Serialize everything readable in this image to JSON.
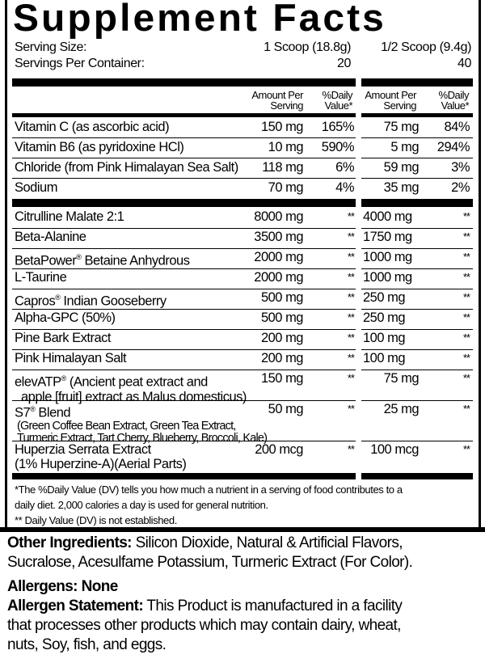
{
  "title": "Supplement Facts",
  "serving": {
    "size_label": "Serving Size:",
    "size_full": "1 Scoop (18.8g)",
    "size_half": "1/2 Scoop (9.4g)",
    "servings_label": "Servings Per Container:",
    "servings_full": "20",
    "servings_half": "40"
  },
  "header": {
    "amount_line1": "Amount Per",
    "amount_line2": "Serving",
    "dv_line1": "%Daily",
    "dv_line2": "Value*"
  },
  "nutrients": [
    {
      "name": "Vitamin C (as ascorbic acid)",
      "amount": "150 mg",
      "dv": "165%",
      "half_amount": "75 mg",
      "half_dv": "84%"
    },
    {
      "name": "Vitamin B6 (as pyridoxine HCl)",
      "amount": "10 mg",
      "dv": "590%",
      "half_amount": "5 mg",
      "half_dv": "294%"
    },
    {
      "name": "Chloride (from Pink Himalayan Sea Salt)",
      "amount": "118 mg",
      "dv": "6%",
      "half_amount": "59 mg",
      "half_dv": "3%"
    },
    {
      "name": "Sodium",
      "amount": "70 mg",
      "dv": "4%",
      "half_amount": "35 mg",
      "half_dv": "2%"
    }
  ],
  "ingredients": [
    {
      "name": "Citrulline Malate 2:1",
      "amount": "8000 mg",
      "dv": "**",
      "half_amount": "4000 mg",
      "half_dv": "**"
    },
    {
      "name": "Beta-Alanine",
      "amount": "3500 mg",
      "dv": "**",
      "half_amount": "1750 mg",
      "half_dv": "**"
    },
    {
      "name": "BetaPower",
      "mark": "®",
      "name_rest": " Betaine Anhydrous",
      "amount": "2000 mg",
      "dv": "**",
      "half_amount": "1000 mg",
      "half_dv": "**"
    },
    {
      "name": "L-Taurine",
      "amount": "2000 mg",
      "dv": "**",
      "half_amount": "1000 mg",
      "half_dv": "**"
    },
    {
      "name": "Capros",
      "mark": "®",
      "name_rest": " Indian Gooseberry",
      "amount": "500 mg",
      "dv": "**",
      "half_amount": "250 mg",
      "half_dv": "**"
    },
    {
      "name": "Alpha-GPC (50%)",
      "amount": "500 mg",
      "dv": "**",
      "half_amount": "250 mg",
      "half_dv": "**"
    },
    {
      "name": "Pine Bark Extract",
      "amount": "200 mg",
      "dv": "**",
      "half_amount": "100 mg",
      "half_dv": "**"
    },
    {
      "name": "Pink Himalayan Salt",
      "amount": "200 mg",
      "dv": "**",
      "half_amount": "100 mg",
      "half_dv": "**"
    },
    {
      "name": "elevATP",
      "mark": "®",
      "name_rest": " (Ancient peat extract  and",
      "line2": "apple [fruit] extract as Malus domesticus)",
      "amount": "150 mg",
      "dv": "**",
      "half_amount": "75 mg",
      "half_dv": "**"
    },
    {
      "name": "S7",
      "mark": "®",
      "name_rest": " Blend",
      "line2": "(Green Coffee Bean Extract, Green Tea Extract,",
      "line3": "Turmeric Extract, Tart Cherry, Blueberry, Broccoli, Kale)",
      "amount": "50 mg",
      "dv": "**",
      "half_amount": "25 mg",
      "half_dv": "**"
    },
    {
      "name": "Huperzia Serrata Extract",
      "line2": "(1% Huperzine-A)(Aerial Parts)",
      "amount": "200 mcg",
      "dv": "**",
      "half_amount": "100 mcg",
      "half_dv": "**"
    }
  ],
  "footnotes": [
    "*The %Daily Value (DV) tells you how much a nutrient in a serving of food contributes to a",
    "daily diet. 2,000 calories a day is used for general nutrition.",
    "** Daily Value (DV) is not established."
  ],
  "other": {
    "label": "Other Ingredients:",
    "text": " Silicon Dioxide, Natural & Artificial Flavors,",
    "text2": "Sucralose, Acesulfame Potassium, Turmeric Extract (For Color).",
    "allergens": "Allergens: None",
    "statement_label": "Allergen Statement:",
    "statement": " This Product is manufactured in a facility",
    "statement2": "that processes other products which may contain dairy, wheat,",
    "statement3": "nuts, Soy, fish, and eggs."
  }
}
